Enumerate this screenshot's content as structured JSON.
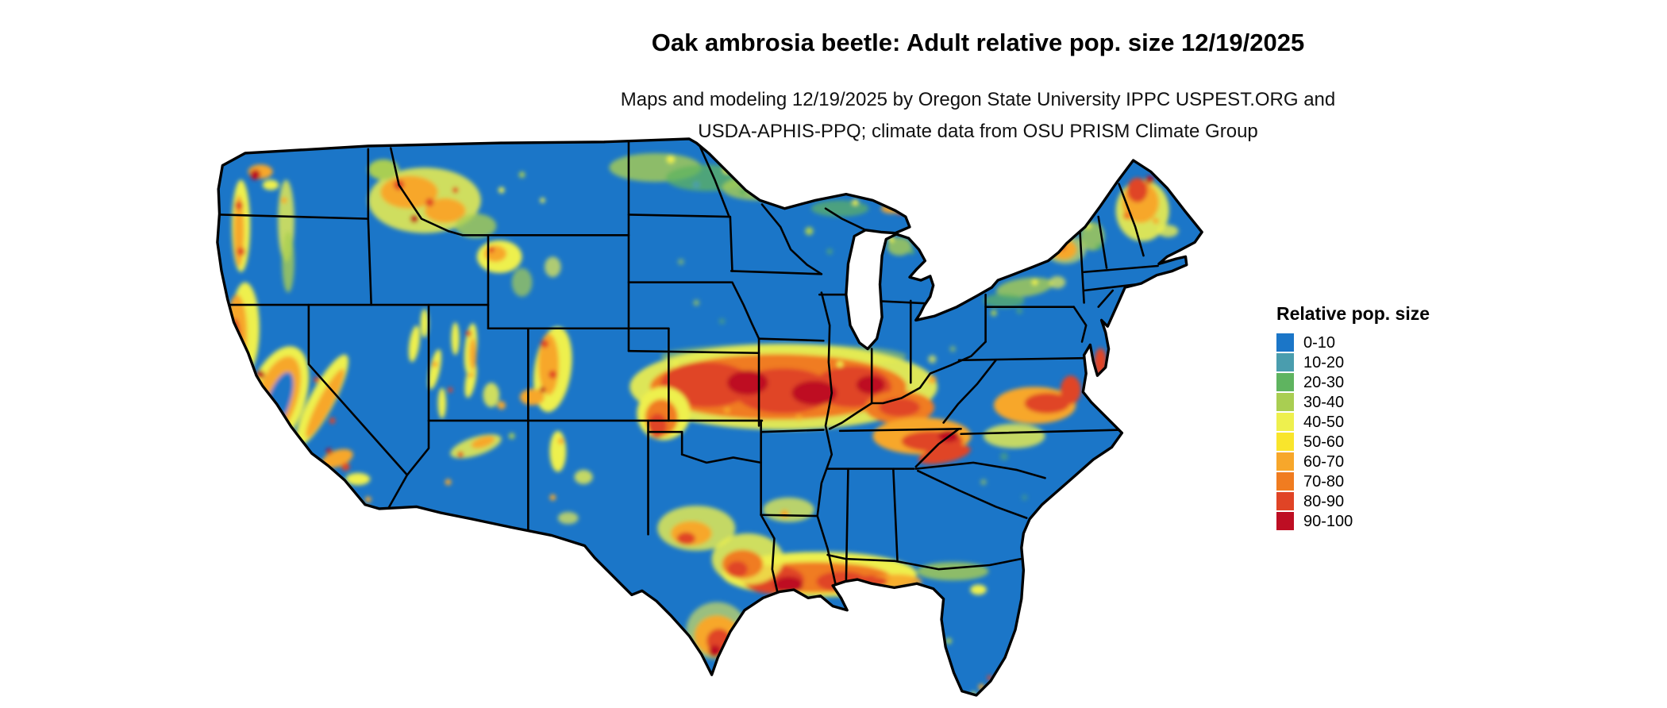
{
  "title": "Oak ambrosia beetle: Adult relative pop. size 12/19/2025",
  "subtitle": {
    "line1": "Maps and modeling 12/19/2025 by Oregon State University IPPC USPEST.ORG and",
    "line2": "USDA-APHIS-PPQ; climate data from OSU PRISM Climate Group"
  },
  "legend": {
    "title": "Relative pop. size",
    "items": [
      {
        "label": "0-10",
        "color": "#1B76C8"
      },
      {
        "label": "10-20",
        "color": "#4A9DAE"
      },
      {
        "label": "20-30",
        "color": "#5FB460"
      },
      {
        "label": "30-40",
        "color": "#A9CE52"
      },
      {
        "label": "40-50",
        "color": "#EEF04E"
      },
      {
        "label": "50-60",
        "color": "#F9E52C"
      },
      {
        "label": "60-70",
        "color": "#F7A72B"
      },
      {
        "label": "70-80",
        "color": "#F07C20"
      },
      {
        "label": "80-90",
        "color": "#E04426"
      },
      {
        "label": "90-100",
        "color": "#BE0E23"
      }
    ]
  },
  "colors": {
    "background": "#ffffff",
    "map_base_fill": "#1B76C8",
    "state_border": "#000000"
  },
  "chart_data": {
    "type": "heatmap",
    "title": "Oak ambrosia beetle: Adult relative pop. size 12/19/2025",
    "region_shown": "Contiguous United States with state borders",
    "variable": "Adult relative pop. size",
    "date": "12/19/2025",
    "legend_position": "right",
    "bins": [
      {
        "range": "0-10",
        "color": "#1B76C8"
      },
      {
        "range": "10-20",
        "color": "#4A9DAE"
      },
      {
        "range": "20-30",
        "color": "#5FB460"
      },
      {
        "range": "30-40",
        "color": "#A9CE52"
      },
      {
        "range": "40-50",
        "color": "#EEF04E"
      },
      {
        "range": "50-60",
        "color": "#F9E52C"
      },
      {
        "range": "60-70",
        "color": "#F7A72B"
      },
      {
        "range": "70-80",
        "color": "#F07C20"
      },
      {
        "range": "80-90",
        "color": "#E04426"
      },
      {
        "range": "90-100",
        "color": "#BE0E23"
      }
    ],
    "dominant_bin": "0-10",
    "high_value_regions_estimated": [
      "Central corridor: Kansas, Missouri, Illinois, Indiana, Kentucky (70-100)",
      "Gulf Coast: coastal Texas, Louisiana, Mississippi, Alabama, Florida panhandle (60-100)",
      "South Texas (60-90)",
      "Pacific coast ranges and Sierra Nevada: Washington, Oregon, California (50-100 patches)",
      "Northern Rockies: Idaho and western Montana (40-90 patches)",
      "Colorado Rockies (50-90 patches)",
      "Tennessee Valley and southern Appalachians (60-90)",
      "Virginia / Chesapeake Bay area and Delmarva (70-100)",
      "Maine and Adirondacks (50-90)"
    ],
    "low_value_regions_estimated": [
      "Great Basin and interior West (0-10)",
      "Northern Plains and upper Midwest interior (0-30)",
      "Southeast coastal plain and Florida peninsula (0-30)",
      "Desert Southwest lowlands (0-10)"
    ]
  }
}
